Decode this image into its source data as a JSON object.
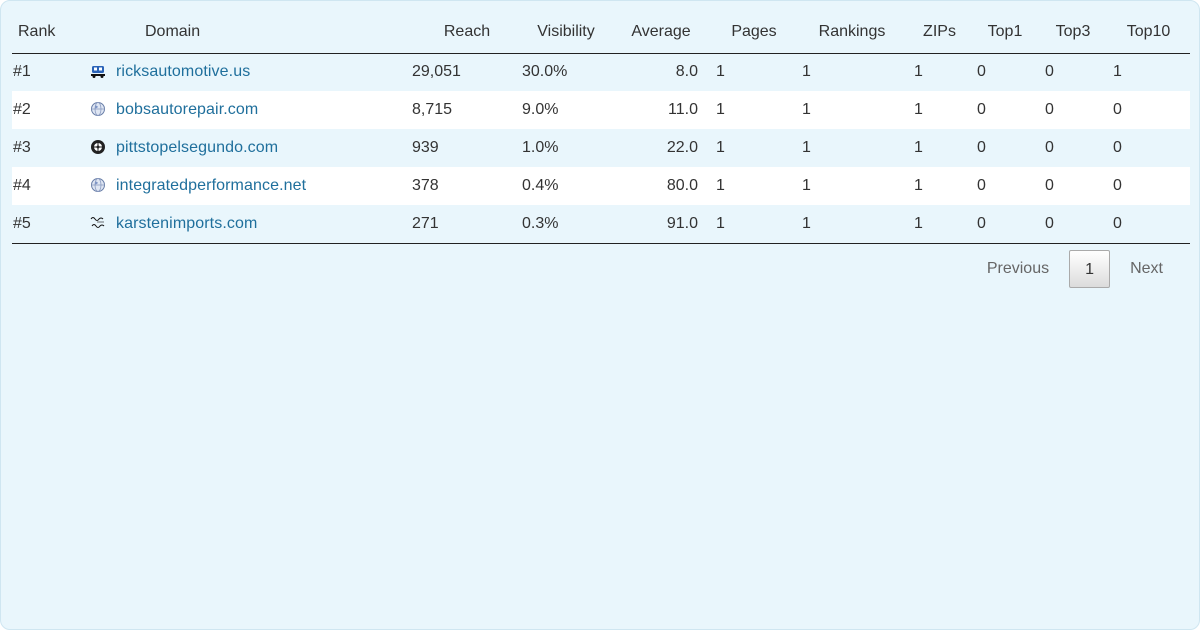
{
  "columns": [
    "Rank",
    "Domain",
    "Reach",
    "Visibility",
    "Average",
    "Pages",
    "Rankings",
    "ZIPs",
    "Top1",
    "Top3",
    "Top10"
  ],
  "rows": [
    {
      "rank": "#1",
      "domain": "ricksautomotive.us",
      "icon": "car-logo-icon",
      "reach": "29,051",
      "visibility": "30.0%",
      "average": "8.0",
      "pages": "1",
      "rankings": "1",
      "zips": "1",
      "top1": "0",
      "top3": "0",
      "top10": "1"
    },
    {
      "rank": "#2",
      "domain": "bobsautorepair.com",
      "icon": "globe-icon",
      "reach": "8,715",
      "visibility": "9.0%",
      "average": "11.0",
      "pages": "1",
      "rankings": "1",
      "zips": "1",
      "top1": "0",
      "top3": "0",
      "top10": "0"
    },
    {
      "rank": "#3",
      "domain": "pittstopelsegundo.com",
      "icon": "tire-icon",
      "reach": "939",
      "visibility": "1.0%",
      "average": "22.0",
      "pages": "1",
      "rankings": "1",
      "zips": "1",
      "top1": "0",
      "top3": "0",
      "top10": "0"
    },
    {
      "rank": "#4",
      "domain": "integratedperformance.net",
      "icon": "globe-icon",
      "reach": "378",
      "visibility": "0.4%",
      "average": "80.0",
      "pages": "1",
      "rankings": "1",
      "zips": "1",
      "top1": "0",
      "top3": "0",
      "top10": "0"
    },
    {
      "rank": "#5",
      "domain": "karstenimports.com",
      "icon": "script-logo-icon",
      "reach": "271",
      "visibility": "0.3%",
      "average": "91.0",
      "pages": "1",
      "rankings": "1",
      "zips": "1",
      "top1": "0",
      "top3": "0",
      "top10": "0"
    }
  ],
  "pagination": {
    "previous_label": "Previous",
    "current_page": "1",
    "next_label": "Next"
  },
  "colors": {
    "background": "#e9f6fc",
    "link": "#1f6f9c",
    "row_alt": "#ffffff"
  }
}
